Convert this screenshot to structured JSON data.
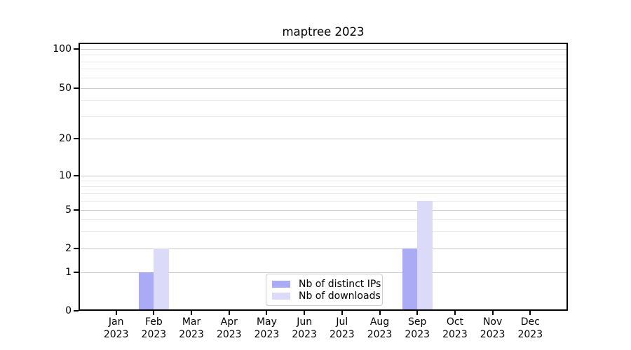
{
  "chart_data": {
    "type": "bar",
    "title": "maptree 2023",
    "categories": [
      "Jan",
      "Feb",
      "Mar",
      "Apr",
      "May",
      "Jun",
      "Jul",
      "Aug",
      "Sep",
      "Oct",
      "Nov",
      "Dec"
    ],
    "year_label": "2023",
    "series": [
      {
        "name": "Nb of distinct IPs",
        "color": "#aaaaf5",
        "values": [
          0,
          1,
          0,
          0,
          0,
          0,
          0,
          0,
          2,
          0,
          0,
          0
        ]
      },
      {
        "name": "Nb of downloads",
        "color": "#dbdaf8",
        "values": [
          0,
          2,
          0,
          0,
          0,
          0,
          0,
          0,
          6,
          0,
          0,
          0
        ]
      }
    ],
    "yscale": "log",
    "ylim": [
      0,
      100
    ],
    "yticks": [
      0,
      1,
      2,
      5,
      10,
      20,
      50,
      100
    ],
    "yticks_minor": [
      3,
      4,
      6,
      7,
      8,
      9,
      30,
      40,
      60,
      70,
      80,
      90
    ],
    "grid": "major+minor horizontal",
    "legend_position": "lower center"
  },
  "colors": {
    "major_grid": "#c9c9c9",
    "minor_grid": "#ebebeb",
    "axis": "#000000",
    "background": "#ffffff",
    "text": "#000000"
  }
}
